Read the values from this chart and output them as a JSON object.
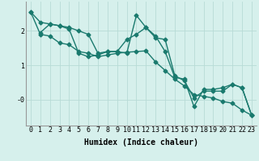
{
  "line1_x": [
    0,
    1,
    2,
    3,
    4,
    5,
    6,
    7,
    8,
    9,
    10,
    11,
    12,
    13,
    14,
    15,
    16,
    17,
    18,
    19,
    20,
    21,
    22,
    23
  ],
  "line1_y": [
    2.55,
    2.25,
    2.2,
    2.15,
    2.1,
    2.0,
    1.9,
    1.35,
    1.4,
    1.4,
    1.75,
    1.9,
    2.1,
    1.8,
    1.75,
    0.7,
    0.55,
    0.05,
    0.25,
    0.25,
    0.25,
    0.45,
    0.35,
    -0.45
  ],
  "line2_x": [
    0,
    1,
    2,
    3,
    4,
    5,
    6,
    7,
    8,
    9,
    10,
    11,
    12,
    13,
    14,
    15,
    16,
    17,
    18,
    19,
    20,
    21,
    22,
    23
  ],
  "line2_y": [
    2.55,
    1.9,
    1.85,
    1.65,
    1.6,
    1.4,
    1.35,
    1.25,
    1.3,
    1.35,
    1.38,
    1.4,
    1.42,
    1.1,
    0.85,
    0.6,
    0.4,
    0.15,
    0.1,
    0.05,
    -0.05,
    -0.1,
    -0.3,
    -0.45
  ],
  "line3_x": [
    1,
    2,
    3,
    4,
    5,
    6,
    7,
    8,
    9,
    10,
    11,
    12,
    13,
    14,
    15,
    16,
    17,
    18,
    19,
    20,
    21,
    22,
    23
  ],
  "line3_y": [
    1.95,
    2.2,
    2.15,
    2.05,
    1.35,
    1.25,
    1.3,
    1.4,
    1.4,
    1.35,
    2.45,
    2.1,
    1.85,
    1.4,
    0.65,
    0.6,
    -0.2,
    0.3,
    0.3,
    0.35,
    0.45,
    0.35,
    -0.45
  ],
  "line_color": "#1a7a6e",
  "bg_color": "#d6f0ec",
  "grid_color": "#b8dbd6",
  "xlabel": "Humidex (Indice chaleur)",
  "yticks": [
    0,
    1,
    2
  ],
  "ytick_labels": [
    "-0",
    "1",
    "2"
  ],
  "ylim": [
    -0.75,
    2.85
  ],
  "xlim": [
    -0.5,
    23.5
  ],
  "xticks": [
    0,
    1,
    2,
    3,
    4,
    5,
    6,
    7,
    8,
    9,
    10,
    11,
    12,
    13,
    14,
    15,
    16,
    17,
    18,
    19,
    20,
    21,
    22,
    23
  ],
  "xlabel_fontsize": 7,
  "tick_fontsize": 6,
  "marker": "D",
  "markersize": 2.5,
  "linewidth": 1.0
}
